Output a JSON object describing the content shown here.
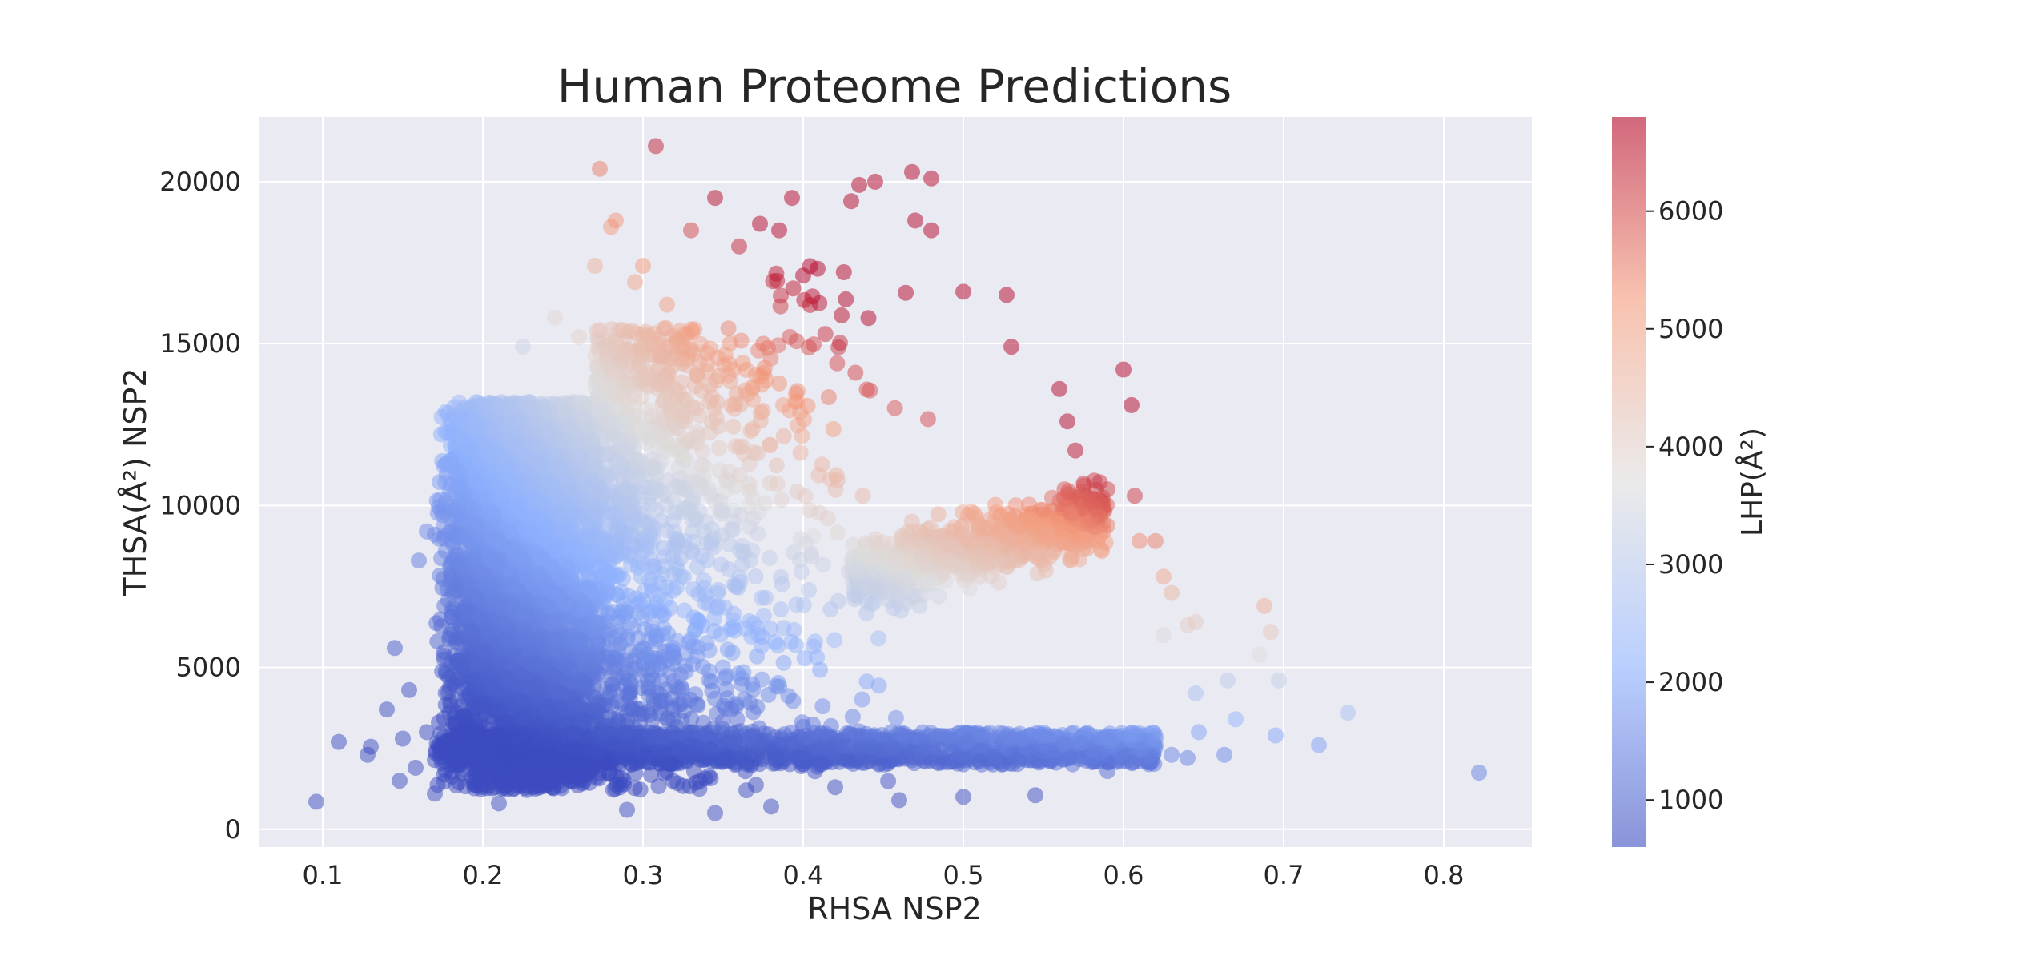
{
  "chart_data": {
    "type": "scatter",
    "title": "Human Proteome Predictions",
    "xlabel": "RHSA NSP2",
    "ylabel": "THSA(Å²) NSP2",
    "colorbar_label": "LHP(Å²)",
    "xlim": [
      0.06,
      0.855
    ],
    "ylim": [
      -550,
      22000
    ],
    "xticks": [
      0.1,
      0.2,
      0.3,
      0.4,
      0.5,
      0.6,
      0.7,
      0.8
    ],
    "xtick_labels": [
      "0.1",
      "0.2",
      "0.3",
      "0.4",
      "0.5",
      "0.6",
      "0.7",
      "0.8"
    ],
    "yticks": [
      0,
      5000,
      10000,
      15000,
      20000
    ],
    "ytick_labels": [
      "0",
      "5000",
      "10000",
      "15000",
      "20000"
    ],
    "clim": [
      600,
      6800
    ],
    "cticks": [
      1000,
      2000,
      3000,
      4000,
      5000,
      6000
    ],
    "ctick_labels": [
      "1000",
      "2000",
      "3000",
      "4000",
      "5000",
      "6000"
    ],
    "colormap": "coolwarm",
    "marker_alpha": 0.5,
    "grid": true,
    "background_color": "#eaeaf2",
    "grid_color": "#ffffff",
    "points": [
      {
        "x": 0.096,
        "y": 850
      },
      {
        "x": 0.11,
        "y": 2700
      },
      {
        "x": 0.128,
        "y": 2300
      },
      {
        "x": 0.13,
        "y": 2550
      },
      {
        "x": 0.14,
        "y": 3700
      },
      {
        "x": 0.145,
        "y": 5600
      },
      {
        "x": 0.148,
        "y": 1500
      },
      {
        "x": 0.15,
        "y": 2800
      },
      {
        "x": 0.154,
        "y": 4300
      },
      {
        "x": 0.158,
        "y": 1900
      },
      {
        "x": 0.16,
        "y": 8300
      },
      {
        "x": 0.165,
        "y": 9200
      },
      {
        "x": 0.17,
        "y": 9100
      },
      {
        "x": 0.165,
        "y": 3000
      },
      {
        "x": 0.17,
        "y": 1100
      },
      {
        "x": 0.175,
        "y": 9700
      },
      {
        "x": 0.18,
        "y": 11400
      },
      {
        "x": 0.185,
        "y": 10700
      },
      {
        "x": 0.19,
        "y": 11800
      },
      {
        "x": 0.195,
        "y": 12700
      },
      {
        "x": 0.2,
        "y": 13100
      },
      {
        "x": 0.21,
        "y": 800
      },
      {
        "x": 0.225,
        "y": 14900
      },
      {
        "x": 0.245,
        "y": 15800
      },
      {
        "x": 0.26,
        "y": 15200
      },
      {
        "x": 0.27,
        "y": 17400
      },
      {
        "x": 0.273,
        "y": 20400
      },
      {
        "x": 0.28,
        "y": 18600
      },
      {
        "x": 0.283,
        "y": 18800
      },
      {
        "x": 0.29,
        "y": 600
      },
      {
        "x": 0.295,
        "y": 16900
      },
      {
        "x": 0.3,
        "y": 17400
      },
      {
        "x": 0.308,
        "y": 21100
      },
      {
        "x": 0.315,
        "y": 16200
      },
      {
        "x": 0.33,
        "y": 18500
      },
      {
        "x": 0.345,
        "y": 19500
      },
      {
        "x": 0.345,
        "y": 500
      },
      {
        "x": 0.36,
        "y": 18000
      },
      {
        "x": 0.373,
        "y": 18700
      },
      {
        "x": 0.385,
        "y": 18500
      },
      {
        "x": 0.393,
        "y": 19500
      },
      {
        "x": 0.4,
        "y": 17100
      },
      {
        "x": 0.38,
        "y": 700
      },
      {
        "x": 0.43,
        "y": 19400
      },
      {
        "x": 0.435,
        "y": 19900
      },
      {
        "x": 0.445,
        "y": 20000
      },
      {
        "x": 0.468,
        "y": 20300
      },
      {
        "x": 0.48,
        "y": 20100
      },
      {
        "x": 0.47,
        "y": 18800
      },
      {
        "x": 0.48,
        "y": 18500
      },
      {
        "x": 0.5,
        "y": 16600
      },
      {
        "x": 0.527,
        "y": 16500
      },
      {
        "x": 0.53,
        "y": 14900
      },
      {
        "x": 0.56,
        "y": 13600
      },
      {
        "x": 0.565,
        "y": 12600
      },
      {
        "x": 0.57,
        "y": 11700
      },
      {
        "x": 0.6,
        "y": 14200
      },
      {
        "x": 0.605,
        "y": 13100
      },
      {
        "x": 0.607,
        "y": 10300
      },
      {
        "x": 0.59,
        "y": 10500
      },
      {
        "x": 0.61,
        "y": 8900
      },
      {
        "x": 0.62,
        "y": 8900
      },
      {
        "x": 0.625,
        "y": 7800
      },
      {
        "x": 0.63,
        "y": 7300
      },
      {
        "x": 0.64,
        "y": 6300
      },
      {
        "x": 0.645,
        "y": 6400
      },
      {
        "x": 0.625,
        "y": 6000
      },
      {
        "x": 0.62,
        "y": 2800
      },
      {
        "x": 0.63,
        "y": 2300
      },
      {
        "x": 0.64,
        "y": 2200
      },
      {
        "x": 0.645,
        "y": 4200
      },
      {
        "x": 0.647,
        "y": 3000
      },
      {
        "x": 0.663,
        "y": 2300
      },
      {
        "x": 0.665,
        "y": 4600
      },
      {
        "x": 0.67,
        "y": 3400
      },
      {
        "x": 0.685,
        "y": 5400
      },
      {
        "x": 0.688,
        "y": 6900
      },
      {
        "x": 0.692,
        "y": 6100
      },
      {
        "x": 0.695,
        "y": 2900
      },
      {
        "x": 0.697,
        "y": 4600
      },
      {
        "x": 0.722,
        "y": 2600
      },
      {
        "x": 0.74,
        "y": 3600
      },
      {
        "x": 0.822,
        "y": 1750
      },
      {
        "x": 0.59,
        "y": 1800
      },
      {
        "x": 0.55,
        "y": 2400
      },
      {
        "x": 0.51,
        "y": 2100
      },
      {
        "x": 0.46,
        "y": 900
      },
      {
        "x": 0.42,
        "y": 1300
      },
      {
        "x": 0.545,
        "y": 1050
      },
      {
        "x": 0.5,
        "y": 1000
      }
    ]
  }
}
